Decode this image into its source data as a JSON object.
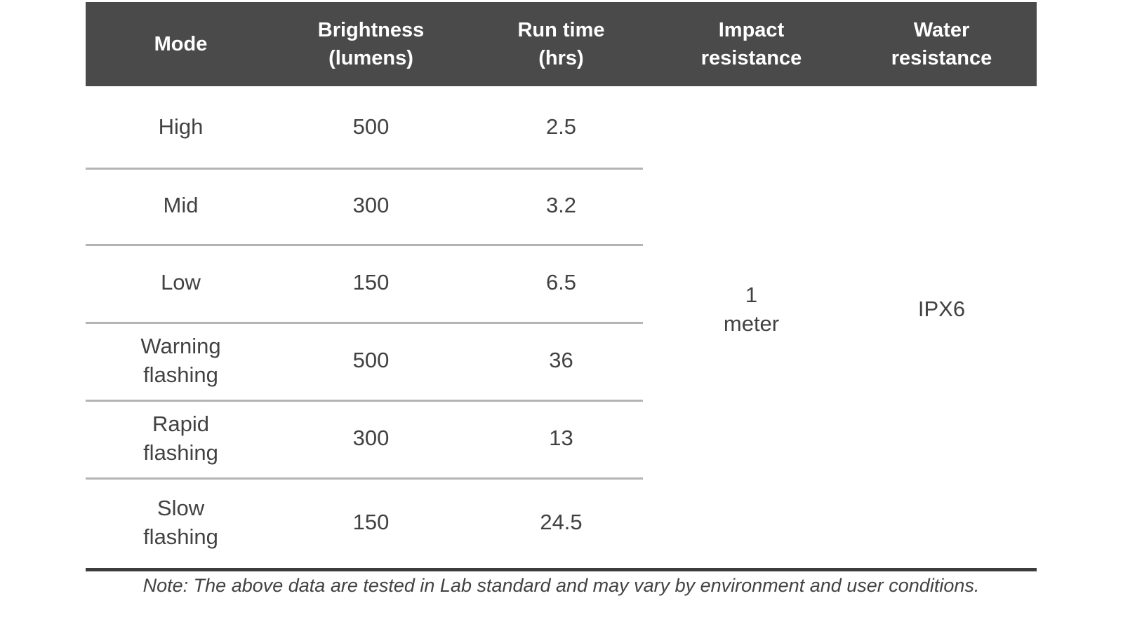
{
  "theme": {
    "header_bg": "#4a4a4a",
    "header_text": "#ffffff",
    "body_text": "#424242",
    "separator": "#b4b4b4",
    "rule_dark": "#3c3c3c"
  },
  "table": {
    "headers": [
      "Mode",
      "Brightness\n(lumens)",
      "Run time\n(hrs)",
      "Impact\nresistance",
      "Water\nresistance"
    ],
    "rows": [
      {
        "mode": "High",
        "brightness": "500",
        "runtime": "2.5"
      },
      {
        "mode": "Mid",
        "brightness": "300",
        "runtime": "3.2"
      },
      {
        "mode": "Low",
        "brightness": "150",
        "runtime": "6.5"
      },
      {
        "mode": "Warning\nflashing",
        "brightness": "500",
        "runtime": "36"
      },
      {
        "mode": "Rapid\nflashing",
        "brightness": "300",
        "runtime": "13"
      },
      {
        "mode": "Slow\nflashing",
        "brightness": "150",
        "runtime": "24.5"
      }
    ],
    "merged": {
      "impact_resistance": "1\nmeter",
      "water_resistance": "IPX6"
    }
  },
  "note": "Note: The above data are tested in Lab standard and may vary by environment and user conditions."
}
